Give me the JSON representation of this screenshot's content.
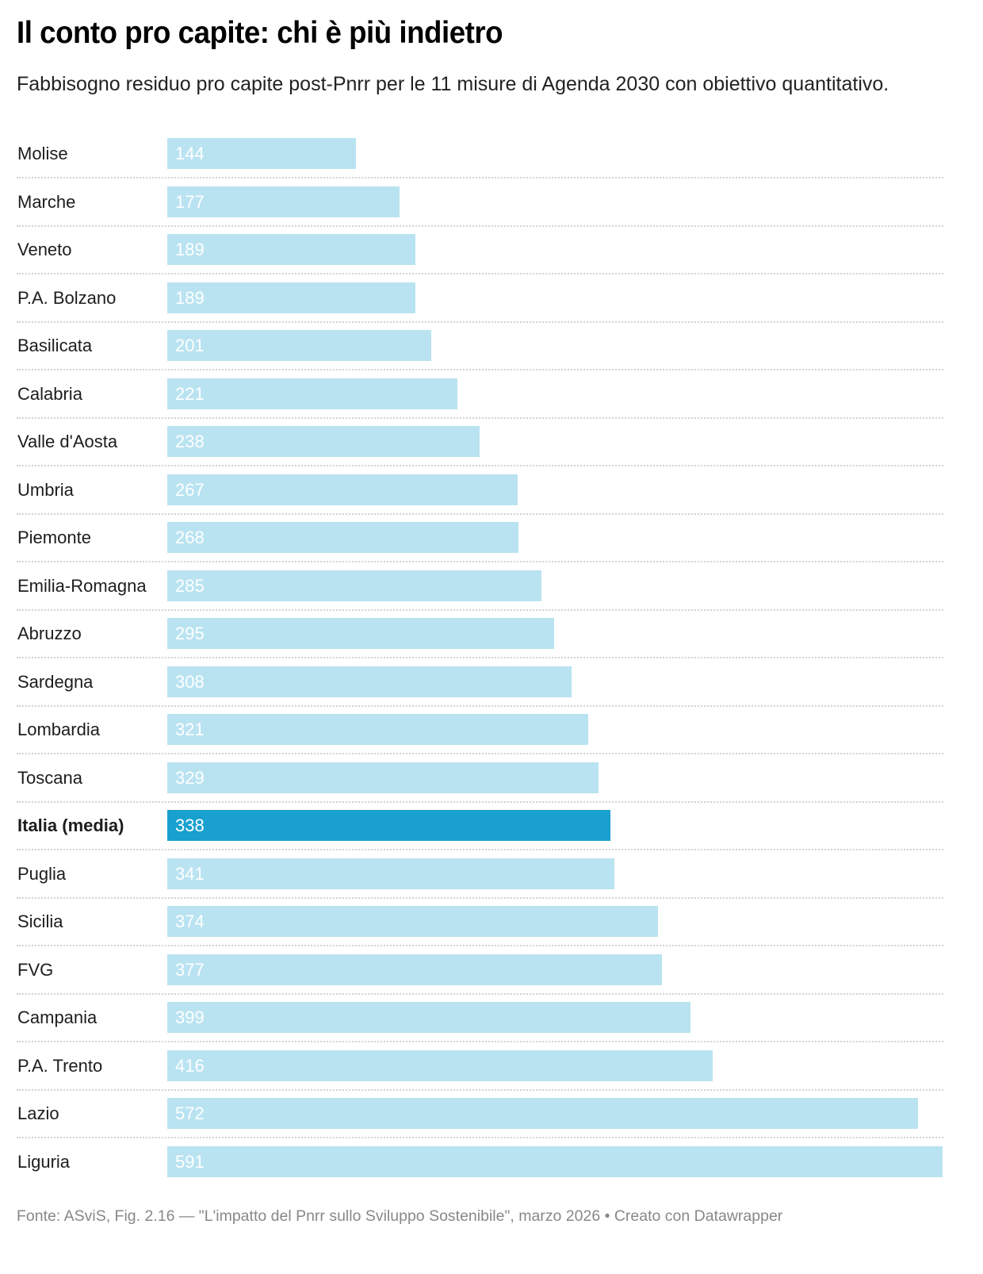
{
  "chart_data": {
    "type": "bar",
    "orientation": "horizontal",
    "title": "Il conto pro capite: chi è più indietro",
    "subtitle": "Fabbisogno residuo pro capite post-Pnrr per le 11 misure di Agenda 2030 con obiettivo quantitativo.",
    "categories": [
      "Molise",
      "Marche",
      "Veneto",
      "P.A. Bolzano",
      "Basilicata",
      "Calabria",
      "Valle d'Aosta",
      "Umbria",
      "Piemonte",
      "Emilia-Romagna",
      "Abruzzo",
      "Sardegna",
      "Lombardia",
      "Toscana",
      "Italia (media)",
      "Puglia",
      "Sicilia",
      "FVG",
      "Campania",
      "P.A. Trento",
      "Lazio",
      "Liguria"
    ],
    "values": [
      144,
      177,
      189,
      189,
      201,
      221,
      238,
      267,
      268,
      285,
      295,
      308,
      321,
      329,
      338,
      341,
      374,
      377,
      399,
      416,
      572,
      591
    ],
    "highlight": "Italia (media)",
    "xlim": [
      0,
      591
    ],
    "colors": {
      "bar": "#b9e3f1",
      "highlight": "#19a0cf"
    },
    "grid": false,
    "source": "Fonte: ASviS, Fig. 2.16 — \"L'impatto del Pnrr sullo Sviluppo Sostenibile\", marzo 2026 • Creato con Datawrapper"
  }
}
